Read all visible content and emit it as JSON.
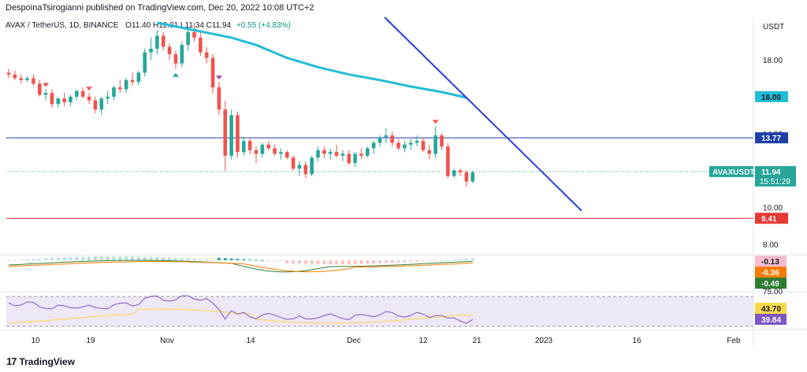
{
  "header": {
    "publisher_line": "DespoinaTsirogianni published on TradingView.com, Dec 20, 2022 10:08 UTC+2",
    "symbol_info": "AVAX / TetherUS, 1D, BINANCE",
    "ohlc": "O11.40 H12.01 L11.34 C11.94",
    "change": "+0.55 (+4.83%)"
  },
  "currency": "USDT",
  "colors": {
    "up": "#26a69a",
    "down": "#ef5350",
    "ma": "#22bcd4",
    "trendline": "#2a3fd6",
    "resistance": "#1e3fa8",
    "support": "#e53935",
    "macd": "#2e7d32",
    "signal": "#f57c00",
    "rsi": "#7e57c2",
    "rsi_ma": "#f9d94a",
    "rsi_band": "#ede7f6"
  },
  "chart_data": [
    {
      "type": "candlestick",
      "symbol": "AVAX / TetherUS",
      "timeframe": "1D",
      "exchange": "BINANCE",
      "ylim": [
        7.6,
        20.3
      ],
      "y_ticks": [
        8.0,
        10.0,
        14.0,
        16.0,
        18.0
      ],
      "x_ticks": [
        "10",
        "19",
        "Nov",
        "14",
        "Dec",
        "12",
        "21",
        "2023",
        "16",
        "Feb"
      ],
      "last_price": 11.94,
      "countdown": "15:51:29",
      "price_label": "AVAXUSDT",
      "horizontal_levels": [
        {
          "value": 13.77,
          "color": "#1e3fa8"
        },
        {
          "value": 9.41,
          "color": "#e53935"
        }
      ],
      "ma_label": 16.0,
      "candles": [
        [
          17.3,
          17.5,
          17.0,
          17.2
        ],
        [
          17.2,
          17.4,
          16.9,
          17.0
        ],
        [
          17.0,
          17.2,
          16.7,
          16.9
        ],
        [
          16.9,
          17.1,
          16.8,
          17.0
        ],
        [
          17.0,
          17.2,
          16.6,
          16.7
        ],
        [
          16.7,
          16.9,
          16.0,
          16.1
        ],
        [
          16.1,
          16.4,
          15.8,
          16.2
        ],
        [
          16.2,
          16.4,
          15.4,
          15.6
        ],
        [
          15.6,
          16.0,
          15.4,
          15.9
        ],
        [
          15.9,
          16.2,
          15.5,
          15.7
        ],
        [
          15.7,
          16.1,
          15.5,
          16.0
        ],
        [
          16.0,
          16.4,
          15.8,
          16.3
        ],
        [
          16.3,
          16.5,
          15.9,
          16.0
        ],
        [
          16.0,
          16.2,
          15.6,
          15.8
        ],
        [
          15.8,
          16.0,
          15.1,
          15.3
        ],
        [
          15.3,
          16.0,
          15.0,
          15.9
        ],
        [
          15.9,
          16.3,
          15.6,
          16.0
        ],
        [
          16.0,
          16.6,
          15.8,
          16.5
        ],
        [
          16.5,
          16.9,
          16.2,
          16.4
        ],
        [
          16.4,
          17.0,
          16.2,
          16.9
        ],
        [
          16.9,
          17.3,
          16.6,
          16.8
        ],
        [
          16.8,
          17.4,
          16.6,
          17.3
        ],
        [
          17.3,
          18.6,
          17.1,
          18.4
        ],
        [
          18.4,
          19.2,
          18.0,
          18.6
        ],
        [
          18.6,
          19.6,
          18.3,
          19.3
        ],
        [
          19.3,
          19.5,
          18.5,
          18.7
        ],
        [
          18.7,
          18.9,
          18.0,
          18.3
        ],
        [
          18.3,
          18.5,
          17.5,
          17.8
        ],
        [
          17.8,
          19.0,
          17.6,
          18.8
        ],
        [
          18.8,
          19.7,
          18.5,
          19.5
        ],
        [
          19.5,
          20.0,
          19.0,
          19.2
        ],
        [
          19.2,
          19.6,
          18.2,
          18.4
        ],
        [
          18.4,
          18.7,
          17.8,
          18.1
        ],
        [
          18.1,
          18.3,
          16.2,
          16.5
        ],
        [
          16.5,
          16.8,
          15.0,
          15.3
        ],
        [
          15.3,
          15.8,
          12.0,
          12.8
        ],
        [
          12.8,
          15.3,
          12.6,
          15.0
        ],
        [
          15.0,
          15.2,
          12.7,
          13.0
        ],
        [
          13.0,
          13.8,
          12.8,
          13.6
        ],
        [
          13.6,
          13.8,
          12.9,
          13.1
        ],
        [
          13.1,
          13.3,
          12.4,
          12.9
        ],
        [
          12.9,
          13.5,
          12.7,
          13.4
        ],
        [
          13.4,
          13.6,
          13.1,
          13.2
        ],
        [
          13.2,
          13.4,
          12.8,
          12.9
        ],
        [
          12.9,
          13.2,
          12.6,
          13.0
        ],
        [
          13.0,
          13.1,
          12.6,
          12.7
        ],
        [
          12.7,
          12.8,
          12.0,
          12.1
        ],
        [
          12.1,
          12.5,
          11.7,
          12.3
        ],
        [
          12.3,
          12.5,
          11.6,
          11.8
        ],
        [
          11.8,
          12.8,
          11.7,
          12.7
        ],
        [
          12.7,
          13.3,
          12.5,
          13.1
        ],
        [
          13.1,
          13.3,
          12.7,
          12.9
        ],
        [
          12.9,
          13.2,
          12.6,
          13.0
        ],
        [
          13.0,
          13.4,
          12.7,
          12.8
        ],
        [
          12.8,
          13.1,
          12.5,
          12.9
        ],
        [
          12.9,
          13.1,
          12.3,
          12.4
        ],
        [
          12.4,
          13.0,
          12.2,
          12.9
        ],
        [
          12.9,
          13.2,
          12.6,
          12.8
        ],
        [
          12.8,
          13.3,
          12.7,
          13.2
        ],
        [
          13.2,
          13.6,
          12.9,
          13.5
        ],
        [
          13.5,
          13.9,
          13.3,
          13.8
        ],
        [
          13.8,
          14.3,
          13.5,
          13.9
        ],
        [
          13.9,
          14.1,
          13.3,
          13.5
        ],
        [
          13.5,
          13.7,
          13.1,
          13.2
        ],
        [
          13.2,
          13.6,
          13.0,
          13.4
        ],
        [
          13.4,
          13.7,
          13.1,
          13.5
        ],
        [
          13.5,
          13.9,
          13.3,
          13.6
        ],
        [
          13.6,
          13.8,
          13.0,
          13.1
        ],
        [
          13.1,
          13.4,
          12.6,
          12.9
        ],
        [
          12.9,
          14.4,
          12.7,
          13.9
        ],
        [
          13.9,
          14.0,
          13.1,
          13.3
        ],
        [
          13.3,
          13.5,
          11.6,
          11.7
        ],
        [
          11.7,
          12.1,
          11.6,
          12.0
        ],
        [
          12.0,
          12.1,
          11.7,
          11.9
        ],
        [
          11.9,
          12.0,
          11.1,
          11.4
        ],
        [
          11.4,
          12.0,
          11.3,
          11.9
        ]
      ],
      "ma_points": [
        [
          24,
          20.0
        ],
        [
          30,
          19.6
        ],
        [
          36,
          19.2
        ],
        [
          40,
          18.8
        ],
        [
          45,
          18.1
        ],
        [
          50,
          17.6
        ],
        [
          55,
          17.2
        ],
        [
          60,
          16.9
        ],
        [
          65,
          16.55
        ],
        [
          70,
          16.25
        ],
        [
          74,
          15.95
        ]
      ],
      "annotations": [
        {
          "type": "arrow-down",
          "candle": 6,
          "color": "#ef5350"
        },
        {
          "type": "arrow-down",
          "candle": 13,
          "color": "#ef5350"
        },
        {
          "type": "arrow-up",
          "candle": 27,
          "color": "#26a69a"
        },
        {
          "type": "arrow-down",
          "candle": 34,
          "color": "#ab47bc"
        },
        {
          "type": "arrow-down",
          "candle": 69,
          "color": "#ef5350"
        }
      ]
    },
    {
      "type": "line",
      "indicator": "MACD",
      "values_shown": [
        -0.13,
        -0.36,
        -0.49
      ]
    },
    {
      "type": "line",
      "indicator": "RSI",
      "y_ticks": [
        75.0
      ],
      "values_shown": [
        43.7,
        39.84
      ]
    }
  ],
  "footer": {
    "brand": "TradingView"
  }
}
